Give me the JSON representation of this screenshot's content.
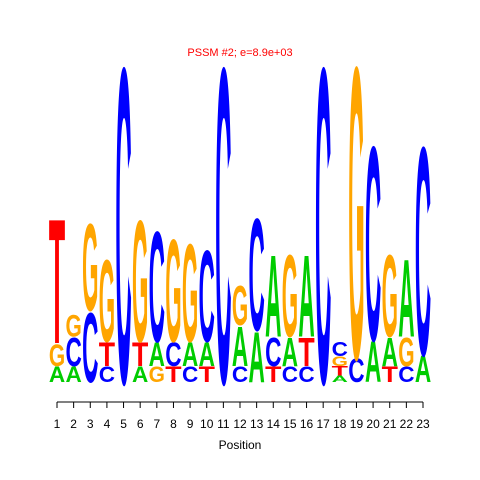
{
  "chart_data": {
    "type": "logo",
    "title": "PSSM #2; e=8.9e+03",
    "xlabel": "Position",
    "title_color": "#ff0000",
    "colors": {
      "A": "#00cc00",
      "C": "#0000ff",
      "G": "#ffa500",
      "T": "#ff0000"
    },
    "xlim": [
      1,
      23
    ],
    "xticks": [
      1,
      2,
      3,
      4,
      5,
      6,
      7,
      8,
      9,
      10,
      11,
      12,
      13,
      14,
      15,
      16,
      17,
      18,
      19,
      20,
      21,
      22,
      23
    ],
    "ylim": [
      0,
      2
    ],
    "positions": [
      {
        "stack": [
          {
            "letter": "A",
            "height": 0.1
          },
          {
            "letter": "G",
            "height": 0.14
          },
          {
            "letter": "T",
            "height": 0.79
          }
        ]
      },
      {
        "stack": [
          {
            "letter": "A",
            "height": 0.1
          },
          {
            "letter": "C",
            "height": 0.18
          },
          {
            "letter": "G",
            "height": 0.14
          }
        ]
      },
      {
        "stack": [
          {
            "letter": "C",
            "height": 0.44
          },
          {
            "letter": "G",
            "height": 0.55
          }
        ]
      },
      {
        "stack": [
          {
            "letter": "C",
            "height": 0.1
          },
          {
            "letter": "T",
            "height": 0.15
          },
          {
            "letter": "G",
            "height": 0.52
          }
        ]
      },
      {
        "stack": [
          {
            "letter": "C",
            "height": 2.0
          }
        ]
      },
      {
        "stack": [
          {
            "letter": "A",
            "height": 0.1
          },
          {
            "letter": "T",
            "height": 0.15
          },
          {
            "letter": "G",
            "height": 0.77
          }
        ]
      },
      {
        "stack": [
          {
            "letter": "G",
            "height": 0.1
          },
          {
            "letter": "A",
            "height": 0.15
          },
          {
            "letter": "C",
            "height": 0.7
          }
        ]
      },
      {
        "stack": [
          {
            "letter": "T",
            "height": 0.1
          },
          {
            "letter": "C",
            "height": 0.15
          },
          {
            "letter": "G",
            "height": 0.65
          }
        ]
      },
      {
        "stack": [
          {
            "letter": "C",
            "height": 0.1
          },
          {
            "letter": "A",
            "height": 0.15
          },
          {
            "letter": "G",
            "height": 0.62
          }
        ]
      },
      {
        "stack": [
          {
            "letter": "T",
            "height": 0.1
          },
          {
            "letter": "A",
            "height": 0.15
          },
          {
            "letter": "C",
            "height": 0.58
          }
        ]
      },
      {
        "stack": [
          {
            "letter": "C",
            "height": 2.0
          }
        ]
      },
      {
        "stack": [
          {
            "letter": "C",
            "height": 0.1
          },
          {
            "letter": "A",
            "height": 0.25
          },
          {
            "letter": "G",
            "height": 0.25
          }
        ]
      },
      {
        "stack": [
          {
            "letter": "A",
            "height": 0.32
          },
          {
            "letter": "C",
            "height": 0.71
          }
        ]
      },
      {
        "stack": [
          {
            "letter": "T",
            "height": 0.1
          },
          {
            "letter": "C",
            "height": 0.18
          },
          {
            "letter": "A",
            "height": 0.52
          }
        ]
      },
      {
        "stack": [
          {
            "letter": "C",
            "height": 0.1
          },
          {
            "letter": "A",
            "height": 0.18
          },
          {
            "letter": "G",
            "height": 0.52
          }
        ]
      },
      {
        "stack": [
          {
            "letter": "C",
            "height": 0.1
          },
          {
            "letter": "T",
            "height": 0.18
          },
          {
            "letter": "A",
            "height": 0.52
          }
        ]
      },
      {
        "stack": [
          {
            "letter": "C",
            "height": 2.0
          }
        ]
      },
      {
        "stack": [
          {
            "letter": "A",
            "height": 0.04
          },
          {
            "letter": "T",
            "height": 0.06
          },
          {
            "letter": "G",
            "height": 0.06
          },
          {
            "letter": "C",
            "height": 0.09
          }
        ]
      },
      {
        "stack": [
          {
            "letter": "C",
            "height": 0.15
          },
          {
            "letter": "G",
            "height": 1.85
          }
        ]
      },
      {
        "stack": [
          {
            "letter": "A",
            "height": 0.26
          },
          {
            "letter": "C",
            "height": 1.23
          }
        ]
      },
      {
        "stack": [
          {
            "letter": "T",
            "height": 0.1
          },
          {
            "letter": "A",
            "height": 0.18
          },
          {
            "letter": "G",
            "height": 0.52
          }
        ]
      },
      {
        "stack": [
          {
            "letter": "C",
            "height": 0.1
          },
          {
            "letter": "G",
            "height": 0.18
          },
          {
            "letter": "A",
            "height": 0.49
          }
        ]
      },
      {
        "stack": [
          {
            "letter": "A",
            "height": 0.17
          },
          {
            "letter": "C",
            "height": 1.32
          }
        ]
      }
    ]
  }
}
